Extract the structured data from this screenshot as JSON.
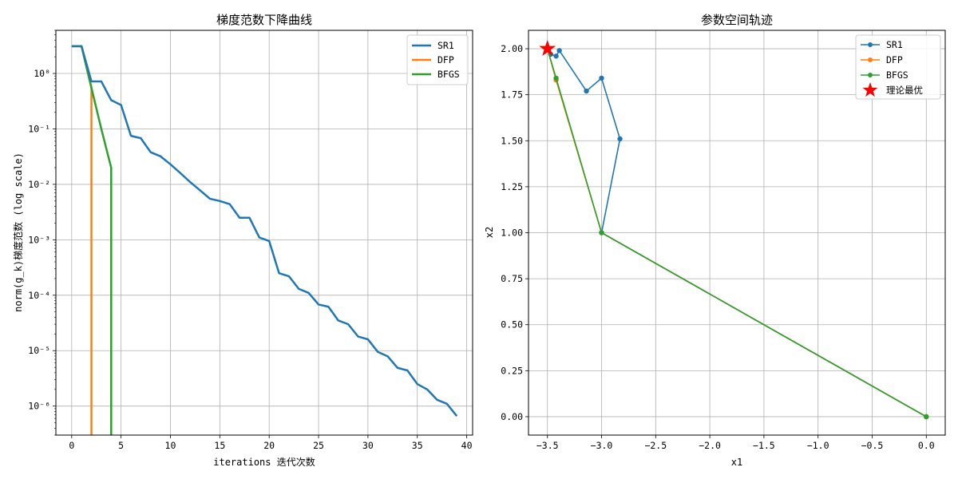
{
  "chart_data": [
    {
      "type": "line",
      "title": "梯度范数下降曲线",
      "xlabel": "iterations 迭代次数",
      "ylabel": "norm(g_k)梯度范数 (log scale)",
      "yscale": "log",
      "xlim": [
        -1.6,
        40.6
      ],
      "ylim": [
        3e-07,
        6
      ],
      "xticks": [
        0,
        5,
        10,
        15,
        20,
        25,
        30,
        35,
        40
      ],
      "yticks": [
        {
          "value": 1,
          "label": "10⁰"
        },
        {
          "value": 0.1,
          "label": "10⁻¹"
        },
        {
          "value": 0.01,
          "label": "10⁻²"
        },
        {
          "value": 0.001,
          "label": "10⁻³"
        },
        {
          "value": 0.0001,
          "label": "10⁻⁴"
        },
        {
          "value": 1e-05,
          "label": "10⁻⁵"
        },
        {
          "value": 1e-06,
          "label": "10⁻⁶"
        }
      ],
      "grid": true,
      "legend_position": "top-right",
      "series": [
        {
          "name": "SR1",
          "color": "#1f77b4",
          "x": [
            0,
            1,
            2,
            3,
            4,
            5,
            6,
            7,
            8,
            9,
            10,
            11,
            12,
            13,
            14,
            15,
            16,
            17,
            18,
            19,
            20,
            21,
            22,
            23,
            24,
            25,
            26,
            27,
            28,
            29,
            30,
            31,
            32,
            33,
            34,
            35,
            36,
            37,
            38,
            39
          ],
          "y": [
            3.1,
            3.1,
            0.72,
            0.72,
            0.33,
            0.27,
            0.075,
            0.068,
            0.038,
            0.032,
            0.023,
            0.016,
            0.011,
            0.0078,
            0.0055,
            0.005,
            0.0044,
            0.0025,
            0.0025,
            0.0011,
            0.00095,
            0.00025,
            0.00022,
            0.00013,
            0.00011,
            6.8e-05,
            6.2e-05,
            3.5e-05,
            3e-05,
            1.8e-05,
            1.6e-05,
            9.5e-06,
            7.9e-06,
            4.9e-06,
            4.4e-06,
            2.5e-06,
            2e-06,
            1.3e-06,
            1.1e-06,
            6.6e-07
          ]
        },
        {
          "name": "DFP",
          "color": "#ff7f0e",
          "x": [
            0,
            1,
            2,
            2
          ],
          "y": [
            3.1,
            3.1,
            0.55,
            3e-07
          ]
        },
        {
          "name": "BFGS",
          "color": "#2ca02c",
          "x": [
            0,
            1,
            2,
            3,
            4,
            4
          ],
          "y": [
            3.1,
            3.1,
            0.55,
            0.1,
            0.02,
            3e-07
          ]
        }
      ]
    },
    {
      "type": "line",
      "title": "参数空间轨迹",
      "xlabel": "x1",
      "ylabel": "x2",
      "xlim": [
        -3.675,
        0.175
      ],
      "ylim": [
        -0.1,
        2.1
      ],
      "xticks": [
        -3.5,
        -3.0,
        -2.5,
        -2.0,
        -1.5,
        -1.0,
        -0.5,
        0.0
      ],
      "yticks": [
        0.0,
        0.25,
        0.5,
        0.75,
        1.0,
        1.25,
        1.5,
        1.75,
        2.0
      ],
      "grid": true,
      "legend_position": "top-right",
      "series": [
        {
          "name": "SR1",
          "color": "#1f77b4",
          "marker": "circle",
          "x": [
            0.0,
            -3.0,
            -2.83,
            -3.0,
            -3.14,
            -3.39,
            -3.42,
            -3.47,
            -3.5
          ],
          "y": [
            0.0,
            1.0,
            1.51,
            1.84,
            1.77,
            1.99,
            1.96,
            1.97,
            2.0
          ]
        },
        {
          "name": "DFP",
          "color": "#ff7f0e",
          "marker": "circle",
          "x": [
            0.0,
            -3.0,
            -3.42,
            -3.5
          ],
          "y": [
            0.0,
            1.0,
            1.83,
            2.0
          ]
        },
        {
          "name": "BFGS",
          "color": "#2ca02c",
          "marker": "circle",
          "x": [
            0.0,
            -3.0,
            -3.42,
            -3.5
          ],
          "y": [
            0.0,
            1.0,
            1.84,
            2.0
          ]
        },
        {
          "name": "理论最优",
          "color": "#ff0000",
          "marker": "star",
          "x": [
            -3.5
          ],
          "y": [
            2.0
          ]
        }
      ]
    }
  ]
}
